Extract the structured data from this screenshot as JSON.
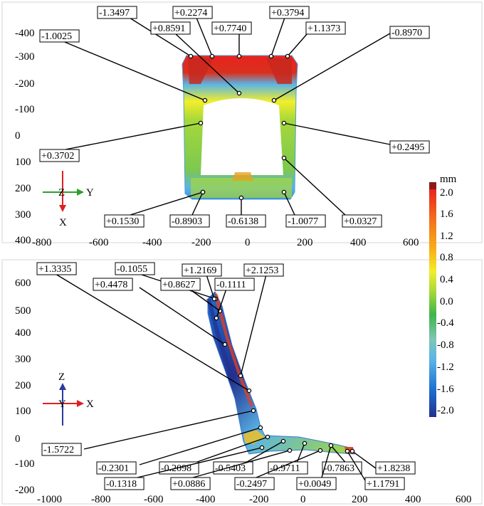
{
  "colorbar": {
    "unit": "mm",
    "ticks": [
      "2.0",
      "1.6",
      "1.2",
      "0.8",
      "0.4",
      "0.0",
      "-0.4",
      "-0.8",
      "-1.2",
      "-1.6",
      "-2.0"
    ],
    "colors": [
      "#8b1a1a",
      "#e8231f",
      "#f26a1b",
      "#f7b21a",
      "#f2ee2a",
      "#a6d83a",
      "#3fb54a",
      "#7fc6b8",
      "#5ab4e6",
      "#1f6fd0",
      "#22308f"
    ]
  },
  "top_view": {
    "y_ticks": [
      "-400",
      "-300",
      "-200",
      "-100",
      "0",
      "100",
      "200",
      "300",
      "400"
    ],
    "x_ticks": [
      "-800",
      "-600",
      "-400",
      "-200",
      "0",
      "200",
      "400",
      "600"
    ],
    "triad": {
      "horizontal": "Y",
      "vertical": "X",
      "origin": "Z"
    },
    "labels": [
      "-1.3497",
      "+0.2274",
      "+0.3794",
      "+0.8591",
      "+0.7740",
      "+1.1373",
      "-1.0025",
      "-0.8970",
      "+0.3702",
      "+0.2495",
      "+0.1530",
      "-0.8903",
      "-0.6138",
      "-1.0077",
      "+0.0327"
    ]
  },
  "side_view": {
    "y_ticks": [
      "600",
      "500",
      "400",
      "300",
      "200",
      "100",
      "0",
      "-100",
      "-200"
    ],
    "x_ticks": [
      "-1000",
      "-800",
      "-600",
      "-400",
      "-200",
      "0",
      "200",
      "400",
      "600"
    ],
    "triad": {
      "horizontal": "X",
      "vertical": "Z",
      "origin": "Y"
    },
    "labels": [
      "+1.3335",
      "-0.1055",
      "+1.2169",
      "+2.1253",
      "+0.4478",
      "+0.8627",
      "-0.1111",
      "-1.5722",
      "-0.2301",
      "-0.2098",
      "-0.5403",
      "-0.9711",
      "-0.7863",
      "+1.8238",
      "-0.1318",
      "+0.0886",
      "-0.2497",
      "+0.0049",
      "+1.1791"
    ]
  }
}
